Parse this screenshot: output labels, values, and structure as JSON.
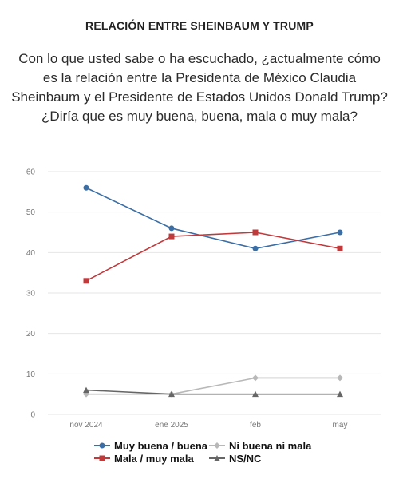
{
  "title": "RELACIÓN ENTRE SHEINBAUM Y TRUMP",
  "subtitle": "Con lo que usted sabe o ha escuchado, ¿actualmente cómo es la relación entre la Presidenta de México Claudia Sheinbaum y el Presidente de Estados Unidos Donald Trump? ¿Diría que es muy buena, buena, mala o muy mala?",
  "chart_data": {
    "type": "line",
    "x": [
      "nov 2024",
      "ene 2025",
      "feb",
      "may"
    ],
    "ylim": [
      0,
      60
    ],
    "yticks": [
      0,
      10,
      20,
      30,
      40,
      50,
      60
    ],
    "grid": true,
    "legend_position": "bottom",
    "series": [
      {
        "name": "Muy buena / buena",
        "values": [
          56,
          46,
          41,
          45
        ],
        "color": "#3a6ea5",
        "marker": "circle"
      },
      {
        "name": "Mala / muy mala",
        "values": [
          33,
          44,
          45,
          41
        ],
        "color": "#c0393b",
        "marker": "square"
      },
      {
        "name": "Ni buena ni mala",
        "values": [
          5,
          5,
          9,
          9
        ],
        "color": "#b8b8b8",
        "marker": "diamond"
      },
      {
        "name": "NS/NC",
        "values": [
          6,
          5,
          5,
          5
        ],
        "color": "#666666",
        "marker": "triangle"
      }
    ]
  }
}
